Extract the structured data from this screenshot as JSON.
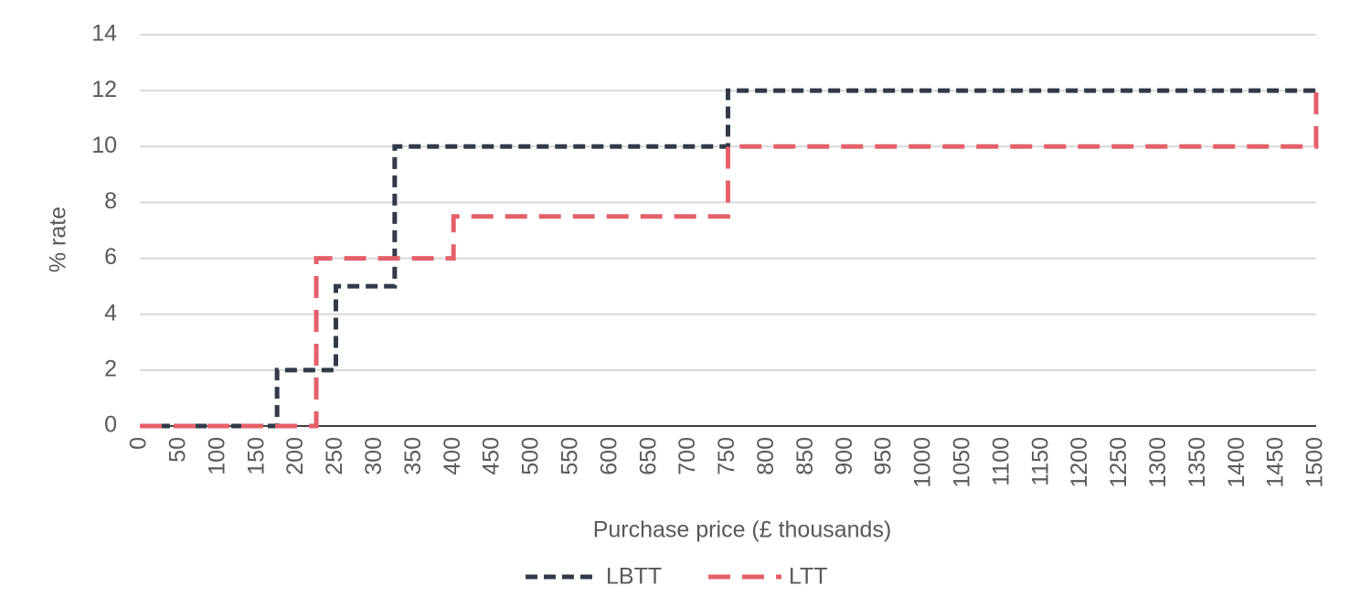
{
  "chart_data": {
    "type": "line",
    "step": "post",
    "x_label": "Purchase price (£ thousands)",
    "y_label": "% rate",
    "series": [
      {
        "name": "LBTT",
        "color": "#323a48",
        "x": [
          0,
          175,
          250,
          325,
          750,
          1500
        ],
        "values": [
          0,
          2,
          5,
          10,
          12,
          12
        ]
      },
      {
        "name": "LTT",
        "color": "#e4606a",
        "x": [
          0,
          225,
          400,
          750,
          1500
        ],
        "values": [
          0,
          6,
          7.5,
          10,
          12
        ]
      }
    ],
    "xlim": [
      0,
      1500
    ],
    "xticks": [
      0,
      50,
      100,
      150,
      200,
      250,
      300,
      350,
      400,
      450,
      500,
      550,
      600,
      650,
      700,
      750,
      800,
      850,
      900,
      950,
      1000,
      1050,
      1100,
      1150,
      1200,
      1250,
      1300,
      1350,
      1400,
      1450,
      1500
    ],
    "ylim": [
      0,
      14
    ],
    "yticks": [
      0,
      2,
      4,
      6,
      8,
      10,
      12,
      14
    ],
    "grid": true,
    "legend": "bottom"
  }
}
